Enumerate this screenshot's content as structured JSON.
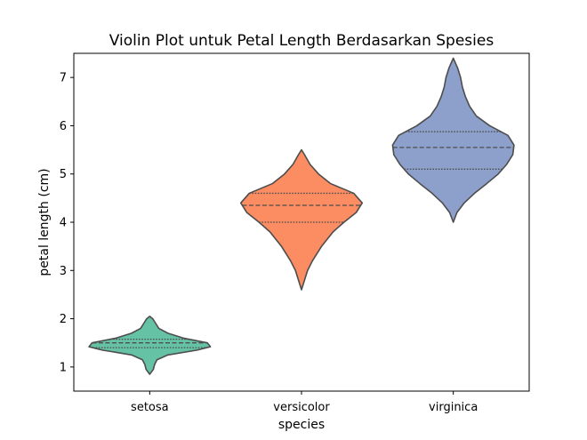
{
  "chart_data": {
    "type": "violin",
    "title": "Violin Plot untuk Petal Length Berdasarkan Spesies",
    "xlabel": "species",
    "ylabel": "petal length (cm)",
    "categories": [
      "setosa",
      "versicolor",
      "virginica"
    ],
    "yticks": [
      "1",
      "2",
      "3",
      "4",
      "5",
      "6",
      "7"
    ],
    "ylim": [
      0.5,
      7.5
    ],
    "grid": false,
    "colors": [
      "#66c2a5",
      "#fc8d62",
      "#8da0cb"
    ],
    "series": [
      {
        "category": "setosa",
        "range": [
          0.85,
          2.05
        ],
        "quartiles": [
          1.4,
          1.5,
          1.575
        ],
        "profile": [
          [
            0.85,
            0.0
          ],
          [
            0.95,
            0.06
          ],
          [
            1.05,
            0.08
          ],
          [
            1.15,
            0.12
          ],
          [
            1.25,
            0.3
          ],
          [
            1.35,
            0.78
          ],
          [
            1.42,
            1.0
          ],
          [
            1.5,
            0.95
          ],
          [
            1.6,
            0.55
          ],
          [
            1.7,
            0.3
          ],
          [
            1.8,
            0.15
          ],
          [
            1.9,
            0.1
          ],
          [
            2.0,
            0.05
          ],
          [
            2.05,
            0.0
          ]
        ]
      },
      {
        "category": "versicolor",
        "range": [
          2.6,
          5.5
        ],
        "quartiles": [
          4.0,
          4.35,
          4.6
        ],
        "profile": [
          [
            2.6,
            0.0
          ],
          [
            2.8,
            0.05
          ],
          [
            3.0,
            0.1
          ],
          [
            3.2,
            0.18
          ],
          [
            3.5,
            0.33
          ],
          [
            3.8,
            0.52
          ],
          [
            4.0,
            0.7
          ],
          [
            4.2,
            0.9
          ],
          [
            4.4,
            1.0
          ],
          [
            4.6,
            0.86
          ],
          [
            4.8,
            0.48
          ],
          [
            5.0,
            0.28
          ],
          [
            5.2,
            0.14
          ],
          [
            5.4,
            0.05
          ],
          [
            5.5,
            0.0
          ]
        ]
      },
      {
        "category": "virginica",
        "range": [
          4.0,
          7.4
        ],
        "quartiles": [
          5.1,
          5.55,
          5.875
        ],
        "profile": [
          [
            4.0,
            0.0
          ],
          [
            4.2,
            0.06
          ],
          [
            4.4,
            0.18
          ],
          [
            4.6,
            0.35
          ],
          [
            4.8,
            0.55
          ],
          [
            5.0,
            0.74
          ],
          [
            5.2,
            0.88
          ],
          [
            5.4,
            0.98
          ],
          [
            5.6,
            1.0
          ],
          [
            5.8,
            0.9
          ],
          [
            6.0,
            0.6
          ],
          [
            6.2,
            0.38
          ],
          [
            6.4,
            0.27
          ],
          [
            6.6,
            0.2
          ],
          [
            6.8,
            0.15
          ],
          [
            7.0,
            0.12
          ],
          [
            7.2,
            0.07
          ],
          [
            7.4,
            0.0
          ]
        ]
      }
    ]
  }
}
